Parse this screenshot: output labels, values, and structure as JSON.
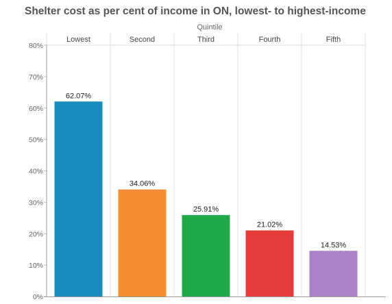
{
  "title": "Shelter cost as per cent of income in ON, lowest- to highest-income",
  "chart_data": {
    "type": "bar",
    "header": "Quintile",
    "categories": [
      "Lowest",
      "Second",
      "Third",
      "Fourth",
      "Fifth"
    ],
    "values": [
      62.07,
      34.06,
      25.91,
      21.02,
      14.53
    ],
    "value_labels": [
      "62.07%",
      "34.06%",
      "25.91%",
      "21.02%",
      "14.53%"
    ],
    "colors": [
      "#1b8bbf",
      "#f68f34",
      "#21a94a",
      "#e63b3c",
      "#a883c4"
    ],
    "ylim": [
      0,
      80
    ],
    "yticks": [
      0,
      10,
      20,
      30,
      40,
      50,
      60,
      70,
      80
    ],
    "ytick_labels": [
      "0%",
      "10%",
      "20%",
      "30%",
      "40%",
      "50%",
      "60%",
      "70%",
      "80%"
    ],
    "grid": "vertical column dividers",
    "xlabel": "",
    "ylabel": ""
  }
}
